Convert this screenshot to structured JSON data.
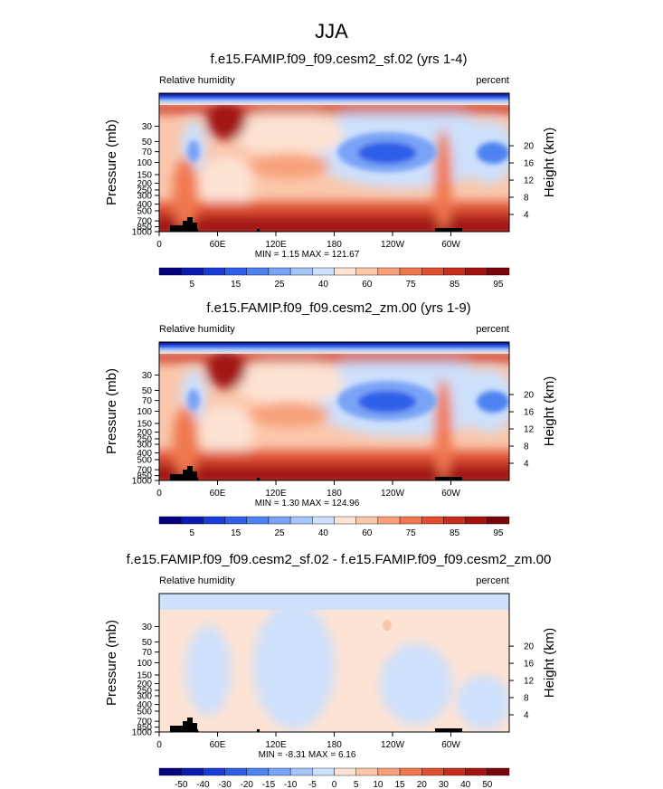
{
  "figure": {
    "title": "JJA"
  },
  "chart_data": [
    {
      "type": "heatmap",
      "title": "f.e15.FAMIP.f09_f09.cesm2_sf.02 (yrs 1-4)",
      "left_label": "Relative humidity",
      "right_label": "percent",
      "ylabel": "Pressure (mb)",
      "ylabel_right": "Height (km)",
      "stats": "MIN =   1.15  MAX = 121.67",
      "x_ticks": [
        "0",
        "60E",
        "120E",
        "180",
        "120W",
        "60W"
      ],
      "y_ticks": [
        "1000",
        "850",
        "700",
        "500",
        "400",
        "300",
        "250",
        "200",
        "150",
        "100",
        "70",
        "50",
        "30"
      ],
      "y_ticks_right": [
        "4",
        "8",
        "12",
        "16",
        "20"
      ],
      "colorbar_labels": [
        "5",
        "15",
        "25",
        "40",
        "60",
        "75",
        "85",
        "95"
      ],
      "colorbar_colors": [
        "#04017e",
        "#0a1ab0",
        "#1a3cd8",
        "#2f5fe8",
        "#4d82f0",
        "#79a3f6",
        "#a6c5fa",
        "#cde0fc",
        "#fde3d3",
        "#fbc7ab",
        "#f7a07a",
        "#f0784f",
        "#e04f30",
        "#c72d1b",
        "#a21312",
        "#78060c"
      ]
    },
    {
      "type": "heatmap",
      "title": "f.e15.FAMIP.f09_f09.cesm2_zm.00 (yrs 1-9)",
      "left_label": "Relative humidity",
      "right_label": "percent",
      "ylabel": "Pressure (mb)",
      "ylabel_right": "Height (km)",
      "stats": "MIN =   1.30  MAX = 124.96",
      "x_ticks": [
        "0",
        "60E",
        "120E",
        "180",
        "120W",
        "60W"
      ],
      "y_ticks": [
        "1000",
        "850",
        "700",
        "500",
        "400",
        "300",
        "250",
        "200",
        "150",
        "100",
        "70",
        "50",
        "30"
      ],
      "y_ticks_right": [
        "4",
        "8",
        "12",
        "16",
        "20"
      ],
      "colorbar_labels": [
        "5",
        "15",
        "25",
        "40",
        "60",
        "75",
        "85",
        "95"
      ],
      "colorbar_colors": [
        "#04017e",
        "#0a1ab0",
        "#1a3cd8",
        "#2f5fe8",
        "#4d82f0",
        "#79a3f6",
        "#a6c5fa",
        "#cde0fc",
        "#fde3d3",
        "#fbc7ab",
        "#f7a07a",
        "#f0784f",
        "#e04f30",
        "#c72d1b",
        "#a21312",
        "#78060c"
      ]
    },
    {
      "type": "heatmap",
      "title": "f.e15.FAMIP.f09_f09.cesm2_sf.02 - f.e15.FAMIP.f09_f09.cesm2_zm.00",
      "left_label": "Relative humidity",
      "right_label": "percent",
      "ylabel": "Pressure (mb)",
      "ylabel_right": "Height (km)",
      "stats": "MIN =  -8.31  MAX =   6.16",
      "x_ticks": [
        "0",
        "60E",
        "120E",
        "180",
        "120W",
        "60W"
      ],
      "y_ticks": [
        "1000",
        "850",
        "700",
        "500",
        "400",
        "300",
        "250",
        "200",
        "150",
        "100",
        "70",
        "50",
        "30"
      ],
      "y_ticks_right": [
        "4",
        "8",
        "12",
        "16",
        "20"
      ],
      "colorbar_labels": [
        "-50",
        "-40",
        "-30",
        "-20",
        "-15",
        "-10",
        "-5",
        "0",
        "5",
        "10",
        "15",
        "20",
        "30",
        "40",
        "50"
      ],
      "colorbar_colors": [
        "#04017e",
        "#0a1ab0",
        "#1a3cd8",
        "#2f5fe8",
        "#4d82f0",
        "#79a3f6",
        "#a6c5fa",
        "#cde0fc",
        "#fde3d3",
        "#fbc7ab",
        "#f7a07a",
        "#f0784f",
        "#e04f30",
        "#c72d1b",
        "#a21312",
        "#78060c"
      ]
    }
  ]
}
